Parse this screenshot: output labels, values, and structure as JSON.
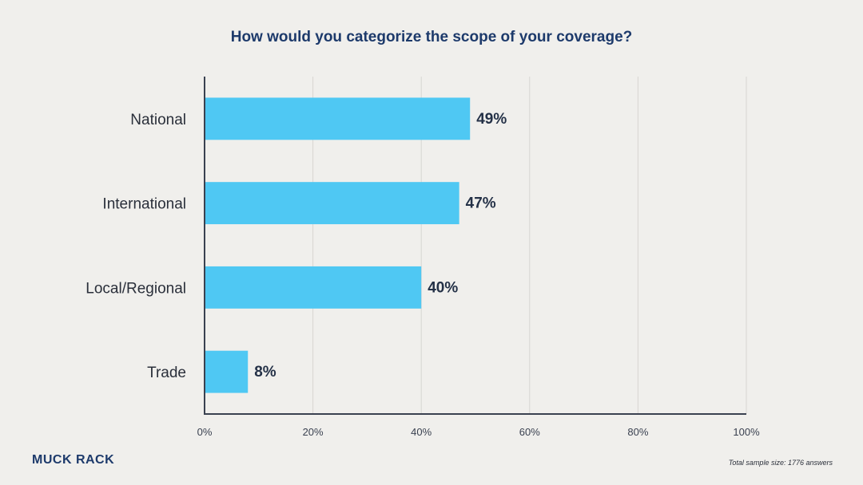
{
  "colors": {
    "bar": "#4fc8f3",
    "axis": "#3a4150",
    "grid": "#d7d6d2",
    "title": "#1d3a6b"
  },
  "brand": {
    "logo_text": "MUCK RACK"
  },
  "footer": {
    "sample_note": "Total sample size: 1776 answers"
  },
  "chart_data": {
    "type": "bar",
    "orientation": "horizontal",
    "title": "How would you categorize the scope of your coverage?",
    "categories": [
      "National",
      "International",
      "Local/Regional",
      "Trade"
    ],
    "values": [
      49,
      47,
      40,
      8
    ],
    "value_labels": [
      "49%",
      "47%",
      "40%",
      "8%"
    ],
    "xlim": [
      0,
      100
    ],
    "xticks": [
      0,
      20,
      40,
      60,
      80,
      100
    ],
    "xtick_labels": [
      "0%",
      "20%",
      "40%",
      "60%",
      "80%",
      "100%"
    ],
    "grid": true,
    "xlabel": "",
    "ylabel": ""
  }
}
